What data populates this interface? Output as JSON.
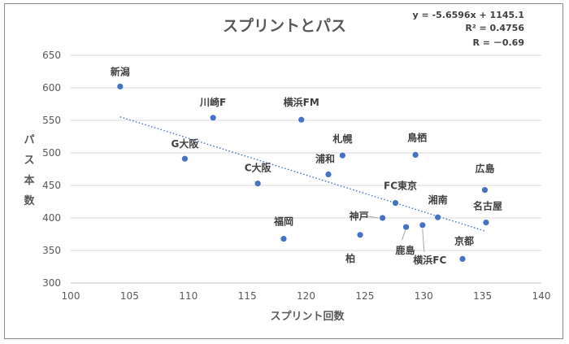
{
  "chart_data": {
    "type": "scatter",
    "title": "スプリントとパス",
    "xlabel": "スプリント回数",
    "ylabel": "パス本数",
    "xlim": [
      100,
      140
    ],
    "ylim": [
      300,
      650
    ],
    "xticks": [
      100,
      105,
      110,
      115,
      120,
      125,
      130,
      135,
      140
    ],
    "yticks": [
      300,
      350,
      400,
      450,
      500,
      550,
      600,
      650
    ],
    "grid": "horizontal",
    "points": [
      {
        "label": "新潟",
        "x": 104.2,
        "y": 602
      },
      {
        "label": "G大阪",
        "x": 109.7,
        "y": 491
      },
      {
        "label": "川崎F",
        "x": 112.1,
        "y": 554
      },
      {
        "label": "C大阪",
        "x": 115.9,
        "y": 453
      },
      {
        "label": "福岡",
        "x": 118.1,
        "y": 368
      },
      {
        "label": "横浜FM",
        "x": 119.6,
        "y": 551
      },
      {
        "label": "浦和",
        "x": 121.9,
        "y": 467
      },
      {
        "label": "札幌",
        "x": 123.1,
        "y": 496
      },
      {
        "label": "柏",
        "x": 124.6,
        "y": 374
      },
      {
        "label": "神戸",
        "x": 126.5,
        "y": 400
      },
      {
        "label": "FC東京",
        "x": 127.6,
        "y": 423
      },
      {
        "label": "鹿島",
        "x": 128.5,
        "y": 386
      },
      {
        "label": "鳥栖",
        "x": 129.3,
        "y": 497
      },
      {
        "label": "横浜FC",
        "x": 129.9,
        "y": 389
      },
      {
        "label": "湘南",
        "x": 131.2,
        "y": 401
      },
      {
        "label": "京都",
        "x": 133.3,
        "y": 337
      },
      {
        "label": "広島",
        "x": 135.2,
        "y": 443
      },
      {
        "label": "名古屋",
        "x": 135.3,
        "y": 393
      }
    ],
    "trendline": {
      "style": "dotted",
      "slope": -5.6596,
      "intercept": 1145.1,
      "x_range": [
        104.2,
        135.3
      ],
      "equation": "y = -5.6596x + 1145.1",
      "r_squared": "R² = 0.4756",
      "r": "R = －0.69"
    },
    "colors": {
      "marker": "#4472c4",
      "trendline": "#4472c4",
      "grid": "#d9d9d9",
      "text": "#595959"
    }
  }
}
